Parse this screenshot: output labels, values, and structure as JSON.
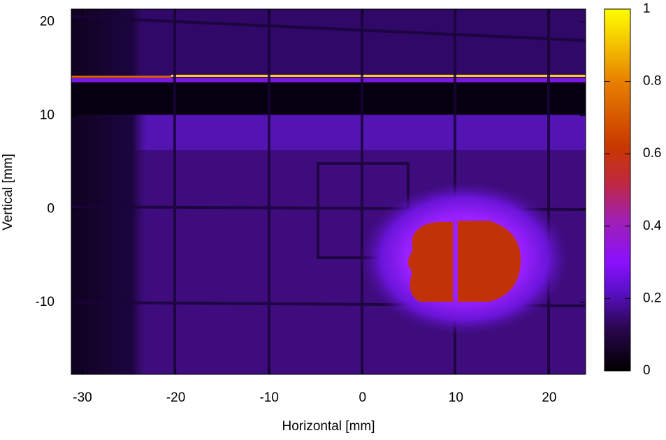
{
  "chart_data": {
    "type": "heatmap",
    "xlabel": "Horizontal [mm]",
    "ylabel": "Vertical [mm]",
    "xlim": [
      -31.2,
      23.9
    ],
    "xticks": [
      -30,
      -20,
      -10,
      0,
      10,
      20
    ],
    "ylim": [
      -17.7,
      21.4
    ],
    "yticks": [
      -10,
      0,
      10,
      20
    ],
    "colorbar": {
      "lim": [
        0,
        1
      ],
      "ticks": [
        0,
        0.2,
        0.4,
        0.6,
        0.8,
        1
      ]
    }
  }
}
